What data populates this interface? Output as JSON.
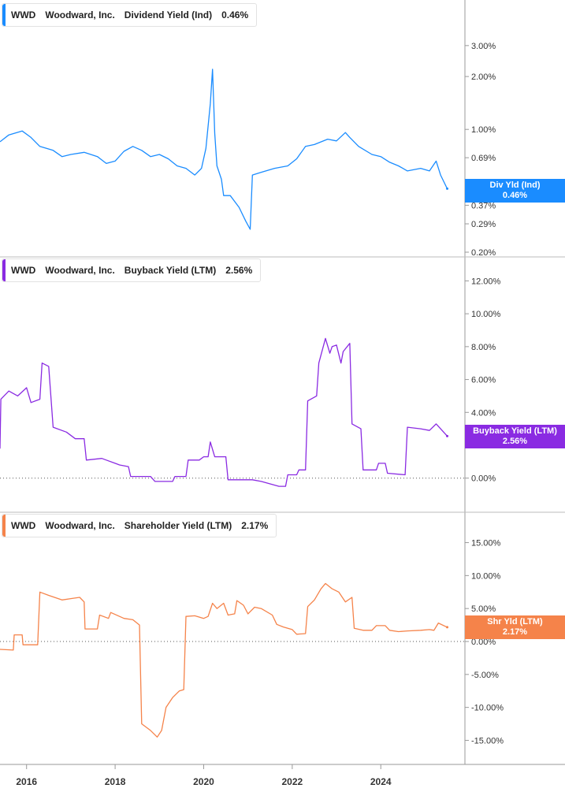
{
  "colors": {
    "dividend": "#1a8cff",
    "buyback": "#8a2be2",
    "shareholder": "#f5834a",
    "grid": "#d0d0d0",
    "axis": "#333333"
  },
  "x_ticks": [
    "2016",
    "2018",
    "2020",
    "2022",
    "2024"
  ],
  "chart_data": [
    {
      "type": "line",
      "panel": "dividend",
      "legend": {
        "ticker": "WWD",
        "company": "Woodward, Inc.",
        "metric": "Dividend Yield (Ind)",
        "value": "0.46%"
      },
      "tag": {
        "label": "Div Yld (Ind)",
        "value": "0.46%"
      },
      "scale": "log",
      "ylim": [
        0.2,
        4.0
      ],
      "y_ticks": [
        {
          "v": 3.0,
          "label": "3.00%"
        },
        {
          "v": 2.0,
          "label": "2.00%"
        },
        {
          "v": 1.0,
          "label": "1.00%"
        },
        {
          "v": 0.69,
          "label": "0.69%"
        },
        {
          "v": 0.37,
          "label": "0.37%"
        },
        {
          "v": 0.29,
          "label": "0.29%"
        },
        {
          "v": 0.2,
          "label": "0.20%"
        }
      ],
      "series": [
        {
          "points": [
            [
              2015.4,
              0.85
            ],
            [
              2015.6,
              0.93
            ],
            [
              2015.9,
              0.98
            ],
            [
              2016.1,
              0.9
            ],
            [
              2016.3,
              0.8
            ],
            [
              2016.6,
              0.76
            ],
            [
              2016.8,
              0.7
            ],
            [
              2017.0,
              0.72
            ],
            [
              2017.3,
              0.74
            ],
            [
              2017.6,
              0.7
            ],
            [
              2017.8,
              0.64
            ],
            [
              2018.0,
              0.66
            ],
            [
              2018.2,
              0.75
            ],
            [
              2018.4,
              0.8
            ],
            [
              2018.6,
              0.76
            ],
            [
              2018.8,
              0.7
            ],
            [
              2019.0,
              0.72
            ],
            [
              2019.2,
              0.68
            ],
            [
              2019.4,
              0.62
            ],
            [
              2019.6,
              0.6
            ],
            [
              2019.8,
              0.55
            ],
            [
              2019.95,
              0.6
            ],
            [
              2020.05,
              0.78
            ],
            [
              2020.15,
              1.4
            ],
            [
              2020.2,
              2.2
            ],
            [
              2020.25,
              0.95
            ],
            [
              2020.3,
              0.62
            ],
            [
              2020.4,
              0.52
            ],
            [
              2020.45,
              0.42
            ],
            [
              2020.6,
              0.42
            ],
            [
              2020.8,
              0.36
            ],
            [
              2020.95,
              0.3
            ],
            [
              2021.05,
              0.27
            ],
            [
              2021.1,
              0.55
            ],
            [
              2021.3,
              0.57
            ],
            [
              2021.6,
              0.6
            ],
            [
              2021.9,
              0.62
            ],
            [
              2022.1,
              0.68
            ],
            [
              2022.3,
              0.8
            ],
            [
              2022.5,
              0.82
            ],
            [
              2022.8,
              0.88
            ],
            [
              2023.0,
              0.86
            ],
            [
              2023.2,
              0.96
            ],
            [
              2023.3,
              0.9
            ],
            [
              2023.5,
              0.8
            ],
            [
              2023.8,
              0.72
            ],
            [
              2024.0,
              0.7
            ],
            [
              2024.2,
              0.65
            ],
            [
              2024.4,
              0.62
            ],
            [
              2024.6,
              0.58
            ],
            [
              2024.9,
              0.6
            ],
            [
              2025.1,
              0.58
            ],
            [
              2025.25,
              0.66
            ],
            [
              2025.35,
              0.55
            ],
            [
              2025.5,
              0.46
            ]
          ]
        }
      ]
    },
    {
      "type": "line",
      "panel": "buyback",
      "legend": {
        "ticker": "WWD",
        "company": "Woodward, Inc.",
        "metric": "Buyback Yield (LTM)",
        "value": "2.56%"
      },
      "tag": {
        "label": "Buyback Yield (LTM)",
        "value": "2.56%"
      },
      "scale": "linear",
      "ylim": [
        -1.5,
        12.5
      ],
      "zero_line": true,
      "y_ticks": [
        {
          "v": 12,
          "label": "12.00%"
        },
        {
          "v": 10,
          "label": "10.00%"
        },
        {
          "v": 8,
          "label": "8.00%"
        },
        {
          "v": 6,
          "label": "6.00%"
        },
        {
          "v": 4,
          "label": "4.00%"
        },
        {
          "v": 2,
          "label": "2.00%"
        },
        {
          "v": 0,
          "label": "0.00%"
        }
      ],
      "series": [
        {
          "points": [
            [
              2015.4,
              1.8
            ],
            [
              2015.42,
              4.8
            ],
            [
              2015.6,
              5.3
            ],
            [
              2015.8,
              5.0
            ],
            [
              2016.0,
              5.5
            ],
            [
              2016.1,
              4.6
            ],
            [
              2016.3,
              4.8
            ],
            [
              2016.35,
              7.0
            ],
            [
              2016.5,
              6.8
            ],
            [
              2016.6,
              3.1
            ],
            [
              2016.9,
              2.8
            ],
            [
              2017.1,
              2.4
            ],
            [
              2017.3,
              2.4
            ],
            [
              2017.35,
              1.1
            ],
            [
              2017.7,
              1.2
            ],
            [
              2017.8,
              1.1
            ],
            [
              2018.0,
              0.9
            ],
            [
              2018.1,
              0.8
            ],
            [
              2018.3,
              0.7
            ],
            [
              2018.35,
              0.1
            ],
            [
              2018.8,
              0.1
            ],
            [
              2018.9,
              -0.2
            ],
            [
              2019.3,
              -0.2
            ],
            [
              2019.35,
              0.1
            ],
            [
              2019.6,
              0.1
            ],
            [
              2019.65,
              1.1
            ],
            [
              2019.9,
              1.1
            ],
            [
              2020.0,
              1.3
            ],
            [
              2020.1,
              1.3
            ],
            [
              2020.15,
              2.2
            ],
            [
              2020.25,
              1.3
            ],
            [
              2020.5,
              1.3
            ],
            [
              2020.55,
              -0.1
            ],
            [
              2021.1,
              -0.1
            ],
            [
              2021.3,
              -0.2
            ],
            [
              2021.7,
              -0.5
            ],
            [
              2021.85,
              -0.5
            ],
            [
              2021.9,
              0.2
            ],
            [
              2022.1,
              0.2
            ],
            [
              2022.15,
              0.5
            ],
            [
              2022.3,
              0.5
            ],
            [
              2022.35,
              4.7
            ],
            [
              2022.55,
              5.0
            ],
            [
              2022.6,
              7.0
            ],
            [
              2022.75,
              8.5
            ],
            [
              2022.85,
              7.6
            ],
            [
              2022.9,
              8.0
            ],
            [
              2023.0,
              8.1
            ],
            [
              2023.1,
              7.0
            ],
            [
              2023.15,
              7.7
            ],
            [
              2023.3,
              8.2
            ],
            [
              2023.35,
              3.3
            ],
            [
              2023.55,
              3.0
            ],
            [
              2023.6,
              0.5
            ],
            [
              2023.9,
              0.5
            ],
            [
              2023.95,
              0.9
            ],
            [
              2024.1,
              0.9
            ],
            [
              2024.15,
              0.3
            ],
            [
              2024.55,
              0.2
            ],
            [
              2024.6,
              3.1
            ],
            [
              2024.9,
              3.0
            ],
            [
              2025.1,
              2.9
            ],
            [
              2025.25,
              3.3
            ],
            [
              2025.35,
              3.0
            ],
            [
              2025.5,
              2.56
            ]
          ]
        }
      ]
    },
    {
      "type": "line",
      "panel": "shareholder",
      "legend": {
        "ticker": "WWD",
        "company": "Woodward, Inc.",
        "metric": "Shareholder Yield (LTM)",
        "value": "2.17%"
      },
      "tag": {
        "label": "Shr Yld (LTM)",
        "value": "2.17%"
      },
      "scale": "linear",
      "ylim": [
        -16.5,
        16.5
      ],
      "zero_line": true,
      "y_ticks": [
        {
          "v": 15,
          "label": "15.00%"
        },
        {
          "v": 10,
          "label": "10.00%"
        },
        {
          "v": 5,
          "label": "5.00%"
        },
        {
          "v": 0,
          "label": "0.00%"
        },
        {
          "v": -5,
          "label": "-5.00%"
        },
        {
          "v": -10,
          "label": "-10.00%"
        },
        {
          "v": -15,
          "label": "-15.00%"
        }
      ],
      "series": [
        {
          "points": [
            [
              2015.4,
              -1.2
            ],
            [
              2015.7,
              -1.3
            ],
            [
              2015.72,
              1.0
            ],
            [
              2015.9,
              1.0
            ],
            [
              2015.92,
              -0.5
            ],
            [
              2016.25,
              -0.5
            ],
            [
              2016.3,
              7.5
            ],
            [
              2016.5,
              7.0
            ],
            [
              2016.8,
              6.3
            ],
            [
              2017.0,
              6.5
            ],
            [
              2017.2,
              6.7
            ],
            [
              2017.3,
              6.0
            ],
            [
              2017.32,
              1.9
            ],
            [
              2017.6,
              1.9
            ],
            [
              2017.65,
              4.0
            ],
            [
              2017.85,
              3.5
            ],
            [
              2017.9,
              4.4
            ],
            [
              2018.2,
              3.5
            ],
            [
              2018.4,
              3.3
            ],
            [
              2018.55,
              2.5
            ],
            [
              2018.6,
              -12.5
            ],
            [
              2018.8,
              -13.5
            ],
            [
              2018.95,
              -14.5
            ],
            [
              2019.05,
              -13.5
            ],
            [
              2019.15,
              -10.0
            ],
            [
              2019.3,
              -8.5
            ],
            [
              2019.45,
              -7.5
            ],
            [
              2019.55,
              -7.3
            ],
            [
              2019.6,
              3.8
            ],
            [
              2019.8,
              3.9
            ],
            [
              2020.0,
              3.5
            ],
            [
              2020.1,
              3.8
            ],
            [
              2020.2,
              5.8
            ],
            [
              2020.3,
              5.0
            ],
            [
              2020.45,
              5.8
            ],
            [
              2020.55,
              4.0
            ],
            [
              2020.7,
              4.2
            ],
            [
              2020.75,
              6.2
            ],
            [
              2020.9,
              5.5
            ],
            [
              2021.0,
              4.2
            ],
            [
              2021.15,
              5.2
            ],
            [
              2021.3,
              5.0
            ],
            [
              2021.55,
              4.0
            ],
            [
              2021.65,
              2.6
            ],
            [
              2021.8,
              2.2
            ],
            [
              2022.0,
              1.8
            ],
            [
              2022.1,
              1.1
            ],
            [
              2022.3,
              1.2
            ],
            [
              2022.35,
              5.3
            ],
            [
              2022.5,
              6.3
            ],
            [
              2022.65,
              8.0
            ],
            [
              2022.75,
              8.8
            ],
            [
              2022.9,
              8.0
            ],
            [
              2023.05,
              7.5
            ],
            [
              2023.2,
              6.0
            ],
            [
              2023.35,
              6.7
            ],
            [
              2023.4,
              2.0
            ],
            [
              2023.6,
              1.7
            ],
            [
              2023.8,
              1.7
            ],
            [
              2023.9,
              2.4
            ],
            [
              2024.1,
              2.4
            ],
            [
              2024.2,
              1.7
            ],
            [
              2024.4,
              1.5
            ],
            [
              2024.6,
              1.6
            ],
            [
              2024.9,
              1.7
            ],
            [
              2025.1,
              1.8
            ],
            [
              2025.2,
              1.7
            ],
            [
              2025.3,
              2.8
            ],
            [
              2025.5,
              2.17
            ]
          ]
        }
      ]
    }
  ]
}
